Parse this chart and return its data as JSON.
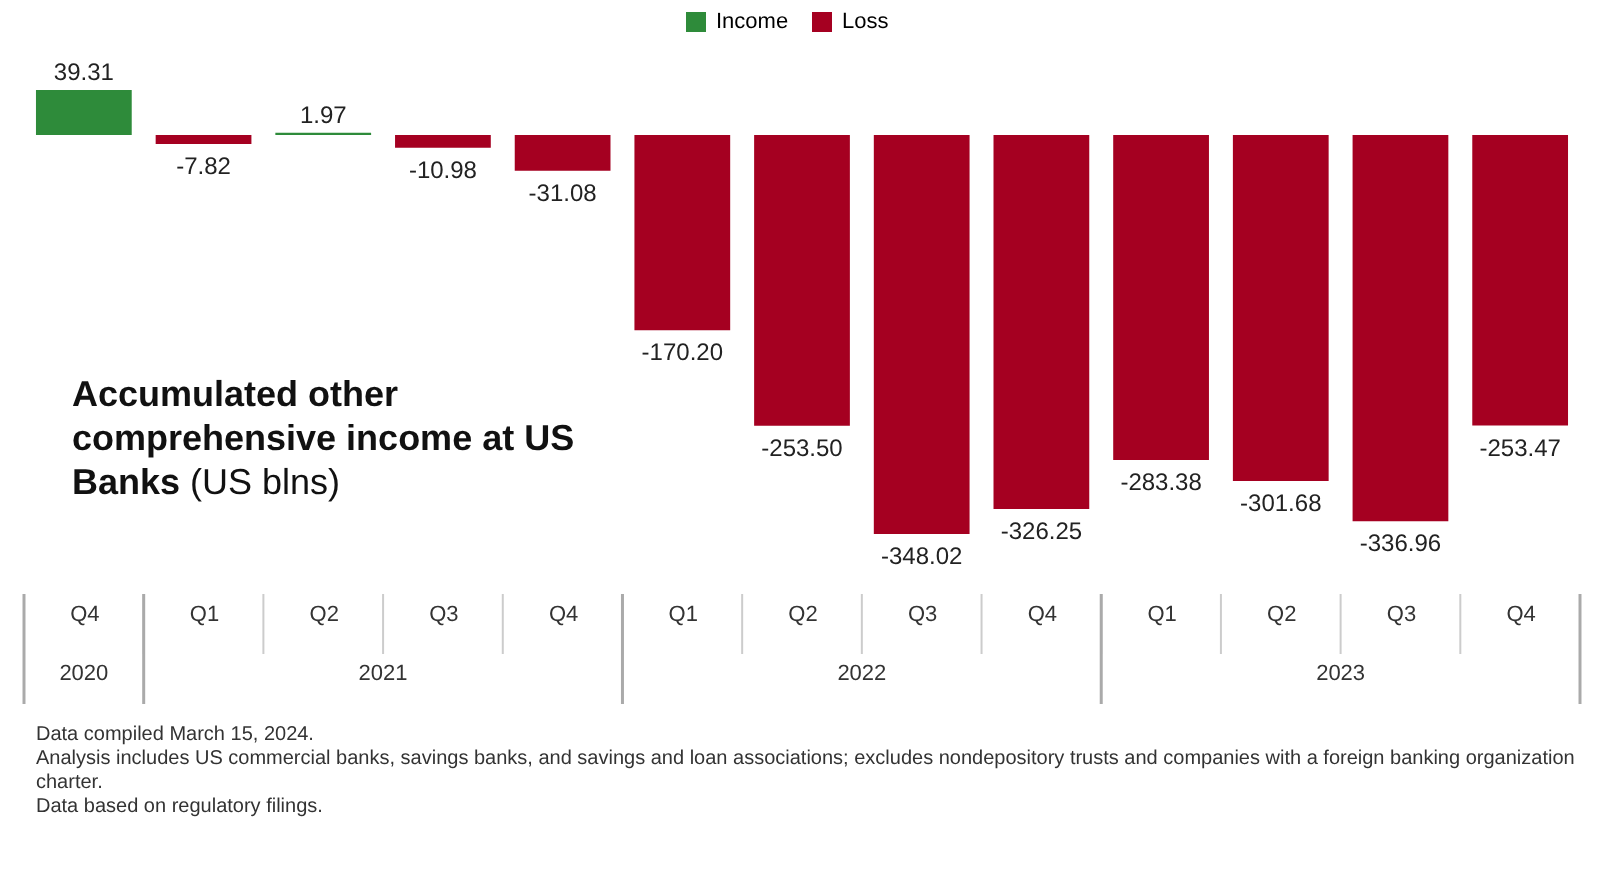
{
  "chart_data": {
    "type": "bar",
    "title": "Accumulated other comprehensive income at US Banks (US blns)",
    "categories": [
      "Q4",
      "Q1",
      "Q2",
      "Q3",
      "Q4",
      "Q1",
      "Q2",
      "Q3",
      "Q4",
      "Q1",
      "Q2",
      "Q3",
      "Q4"
    ],
    "series": [
      {
        "name": "Income",
        "color": "#2e8b3a",
        "values": [
          39.31,
          null,
          1.97,
          null,
          null,
          null,
          null,
          null,
          null,
          null,
          null,
          null,
          null
        ],
        "value_labels": [
          "39.31",
          null,
          "1.97",
          null,
          null,
          null,
          null,
          null,
          null,
          null,
          null,
          null,
          null
        ]
      },
      {
        "name": "Loss",
        "color": "#a50021",
        "values": [
          null,
          -7.82,
          null,
          -10.98,
          -31.08,
          -170.2,
          -253.5,
          -348.02,
          -326.25,
          -283.38,
          -301.68,
          -336.96,
          -253.47
        ],
        "value_labels": [
          null,
          "-7.82",
          null,
          "-10.98",
          "-31.08",
          "-170.20",
          "-253.50",
          "-348.02",
          "-326.25",
          "-283.38",
          "-301.68",
          "-336.96",
          "-253.47"
        ]
      }
    ],
    "legend": "top",
    "grid": false,
    "annotations": [
      "2020",
      "2021",
      "2022",
      "2023",
      "Data compiled March 15, 2024.",
      "Analysis includes US commercial banks, savings banks, and savings and loan associations; excludes nondepository trusts and companies with a foreign banking organization charter.",
      "Data based on regulatory filings."
    ]
  }
}
